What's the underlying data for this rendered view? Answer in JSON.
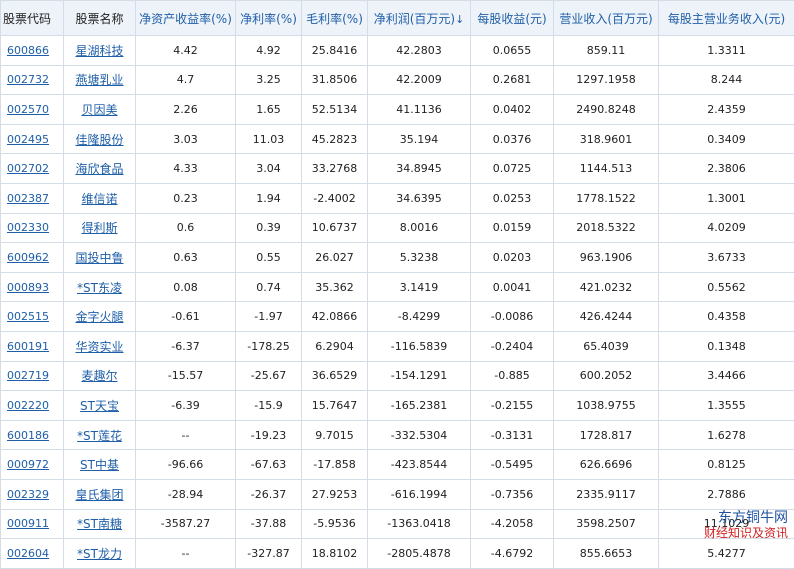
{
  "headers": {
    "code": "股票代码",
    "name": "股票名称",
    "roe": "净资产收益率(%)",
    "net_margin": "净利率(%)",
    "gross_margin": "毛利率(%)",
    "net_profit": "净利润(百万元)",
    "net_profit_sort_icon": "down-arrow",
    "eps": "每股收益(元)",
    "revenue": "营业收入(百万元)",
    "rev_per_share": "每股主营业务收入(元)"
  },
  "rows": [
    {
      "code": "600866",
      "name": "星湖科技",
      "roe": "4.42",
      "net_margin": "4.92",
      "gross_margin": "25.8416",
      "net_profit": "42.2803",
      "eps": "0.0655",
      "revenue": "859.11",
      "rev_per_share": "1.3311"
    },
    {
      "code": "002732",
      "name": "燕塘乳业",
      "roe": "4.7",
      "net_margin": "3.25",
      "gross_margin": "31.8506",
      "net_profit": "42.2009",
      "eps": "0.2681",
      "revenue": "1297.1958",
      "rev_per_share": "8.244"
    },
    {
      "code": "002570",
      "name": "贝因美",
      "roe": "2.26",
      "net_margin": "1.65",
      "gross_margin": "52.5134",
      "net_profit": "41.1136",
      "eps": "0.0402",
      "revenue": "2490.8248",
      "rev_per_share": "2.4359"
    },
    {
      "code": "002495",
      "name": "佳隆股份",
      "roe": "3.03",
      "net_margin": "11.03",
      "gross_margin": "45.2823",
      "net_profit": "35.194",
      "eps": "0.0376",
      "revenue": "318.9601",
      "rev_per_share": "0.3409"
    },
    {
      "code": "002702",
      "name": "海欣食品",
      "roe": "4.33",
      "net_margin": "3.04",
      "gross_margin": "33.2768",
      "net_profit": "34.8945",
      "eps": "0.0725",
      "revenue": "1144.513",
      "rev_per_share": "2.3806"
    },
    {
      "code": "002387",
      "name": "维信诺",
      "roe": "0.23",
      "net_margin": "1.94",
      "gross_margin": "-2.4002",
      "net_profit": "34.6395",
      "eps": "0.0253",
      "revenue": "1778.1522",
      "rev_per_share": "1.3001"
    },
    {
      "code": "002330",
      "name": "得利斯",
      "roe": "0.6",
      "net_margin": "0.39",
      "gross_margin": "10.6737",
      "net_profit": "8.0016",
      "eps": "0.0159",
      "revenue": "2018.5322",
      "rev_per_share": "4.0209"
    },
    {
      "code": "600962",
      "name": "国投中鲁",
      "roe": "0.63",
      "net_margin": "0.55",
      "gross_margin": "26.027",
      "net_profit": "5.3238",
      "eps": "0.0203",
      "revenue": "963.1906",
      "rev_per_share": "3.6733"
    },
    {
      "code": "000893",
      "name": "*ST东凌",
      "roe": "0.08",
      "net_margin": "0.74",
      "gross_margin": "35.362",
      "net_profit": "3.1419",
      "eps": "0.0041",
      "revenue": "421.0232",
      "rev_per_share": "0.5562"
    },
    {
      "code": "002515",
      "name": "金字火腿",
      "roe": "-0.61",
      "net_margin": "-1.97",
      "gross_margin": "42.0866",
      "net_profit": "-8.4299",
      "eps": "-0.0086",
      "revenue": "426.4244",
      "rev_per_share": "0.4358"
    },
    {
      "code": "600191",
      "name": "华资实业",
      "roe": "-6.37",
      "net_margin": "-178.25",
      "gross_margin": "6.2904",
      "net_profit": "-116.5839",
      "eps": "-0.2404",
      "revenue": "65.4039",
      "rev_per_share": "0.1348"
    },
    {
      "code": "002719",
      "name": "麦趣尔",
      "roe": "-15.57",
      "net_margin": "-25.67",
      "gross_margin": "36.6529",
      "net_profit": "-154.1291",
      "eps": "-0.885",
      "revenue": "600.2052",
      "rev_per_share": "3.4466"
    },
    {
      "code": "002220",
      "name": "ST天宝",
      "roe": "-6.39",
      "net_margin": "-15.9",
      "gross_margin": "15.7647",
      "net_profit": "-165.2381",
      "eps": "-0.2155",
      "revenue": "1038.9755",
      "rev_per_share": "1.3555"
    },
    {
      "code": "600186",
      "name": "*ST莲花",
      "roe": "--",
      "net_margin": "-19.23",
      "gross_margin": "9.7015",
      "net_profit": "-332.5304",
      "eps": "-0.3131",
      "revenue": "1728.817",
      "rev_per_share": "1.6278"
    },
    {
      "code": "000972",
      "name": "ST中基",
      "roe": "-96.66",
      "net_margin": "-67.63",
      "gross_margin": "-17.858",
      "net_profit": "-423.8544",
      "eps": "-0.5495",
      "revenue": "626.6696",
      "rev_per_share": "0.8125"
    },
    {
      "code": "002329",
      "name": "皇氏集团",
      "roe": "-28.94",
      "net_margin": "-26.37",
      "gross_margin": "27.9253",
      "net_profit": "-616.1994",
      "eps": "-0.7356",
      "revenue": "2335.9117",
      "rev_per_share": "2.7886"
    },
    {
      "code": "000911",
      "name": "*ST南糖",
      "roe": "-3587.27",
      "net_margin": "-37.88",
      "gross_margin": "-5.9536",
      "net_profit": "-1363.0418",
      "eps": "-4.2058",
      "revenue": "3598.2507",
      "rev_per_share": "11.1029"
    },
    {
      "code": "002604",
      "name": "*ST龙力",
      "roe": "--",
      "net_margin": "-327.87",
      "gross_margin": "18.8102",
      "net_profit": "-2805.4878",
      "eps": "-4.6792",
      "revenue": "855.6653",
      "rev_per_share": "5.4277"
    }
  ],
  "watermark": {
    "line1": "东方铜牛网",
    "line2": "财经知识及资讯"
  }
}
